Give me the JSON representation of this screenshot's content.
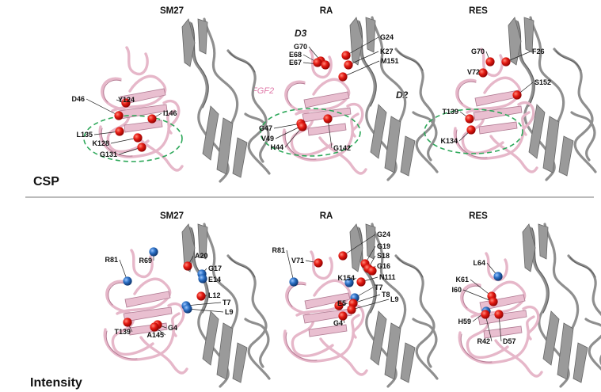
{
  "colors": {
    "red_sphere": "#d40f0f",
    "blue_sphere": "#2a6fc4",
    "fgf2_label": "#e07aa9",
    "binding_region": "#2ea85a"
  },
  "sections": {
    "top": "CSP",
    "bottom": "Intensity"
  },
  "domain_labels": {
    "d3": "D3",
    "d2": "D2",
    "fgf2": "FGF2"
  },
  "top_row": [
    {
      "title": "SM27",
      "residues": [
        {
          "label": "D46",
          "color": "red"
        },
        {
          "label": "Y124",
          "color": "red"
        },
        {
          "label": "I146",
          "color": "red"
        },
        {
          "label": "L135",
          "color": "red"
        },
        {
          "label": "K128",
          "color": "red"
        },
        {
          "label": "G131",
          "color": "red"
        }
      ]
    },
    {
      "title": "RA",
      "residues": [
        {
          "label": "G70",
          "color": "red"
        },
        {
          "label": "E68",
          "color": "red"
        },
        {
          "label": "E67",
          "color": "red"
        },
        {
          "label": "G24",
          "color": "red"
        },
        {
          "label": "K27",
          "color": "red"
        },
        {
          "label": "M151",
          "color": "red"
        },
        {
          "label": "G47",
          "color": "red"
        },
        {
          "label": "V49",
          "color": "red"
        },
        {
          "label": "H44",
          "color": "red"
        },
        {
          "label": "G142",
          "color": "red"
        }
      ]
    },
    {
      "title": "RES",
      "residues": [
        {
          "label": "G70",
          "color": "red"
        },
        {
          "label": "F26",
          "color": "red"
        },
        {
          "label": "V72",
          "color": "red"
        },
        {
          "label": "S152",
          "color": "red"
        },
        {
          "label": "T139",
          "color": "red"
        },
        {
          "label": "K134",
          "color": "red"
        }
      ]
    }
  ],
  "bottom_row": [
    {
      "title": "SM27",
      "residues": [
        {
          "label": "A20",
          "color": "red"
        },
        {
          "label": "R81",
          "color": "blue"
        },
        {
          "label": "R69",
          "color": "blue"
        },
        {
          "label": "G17",
          "color": "blue"
        },
        {
          "label": "E14",
          "color": "blue"
        },
        {
          "label": "L12",
          "color": "red"
        },
        {
          "label": "T7",
          "color": "blue"
        },
        {
          "label": "L9",
          "color": "blue"
        },
        {
          "label": "G4",
          "color": "red"
        },
        {
          "label": "T139",
          "color": "red"
        },
        {
          "label": "A145",
          "color": "red"
        }
      ]
    },
    {
      "title": "RA",
      "residues": [
        {
          "label": "G24",
          "color": "red"
        },
        {
          "label": "R81",
          "color": "blue"
        },
        {
          "label": "G19",
          "color": "red"
        },
        {
          "label": "V71",
          "color": "red"
        },
        {
          "label": "S18",
          "color": "red"
        },
        {
          "label": "G16",
          "color": "red"
        },
        {
          "label": "N111",
          "color": "red"
        },
        {
          "label": "K154",
          "color": "blue"
        },
        {
          "label": "T7",
          "color": "blue"
        },
        {
          "label": "T8",
          "color": "red"
        },
        {
          "label": "L9",
          "color": "red"
        },
        {
          "label": "E5",
          "color": "red"
        },
        {
          "label": "G4",
          "color": "red"
        }
      ]
    },
    {
      "title": "RES",
      "residues": [
        {
          "label": "L64",
          "color": "blue"
        },
        {
          "label": "K61",
          "color": "red"
        },
        {
          "label": "I60",
          "color": "red"
        },
        {
          "label": "H59",
          "color": "blue"
        },
        {
          "label": "R42",
          "color": "red"
        },
        {
          "label": "D57",
          "color": "red"
        }
      ]
    }
  ]
}
